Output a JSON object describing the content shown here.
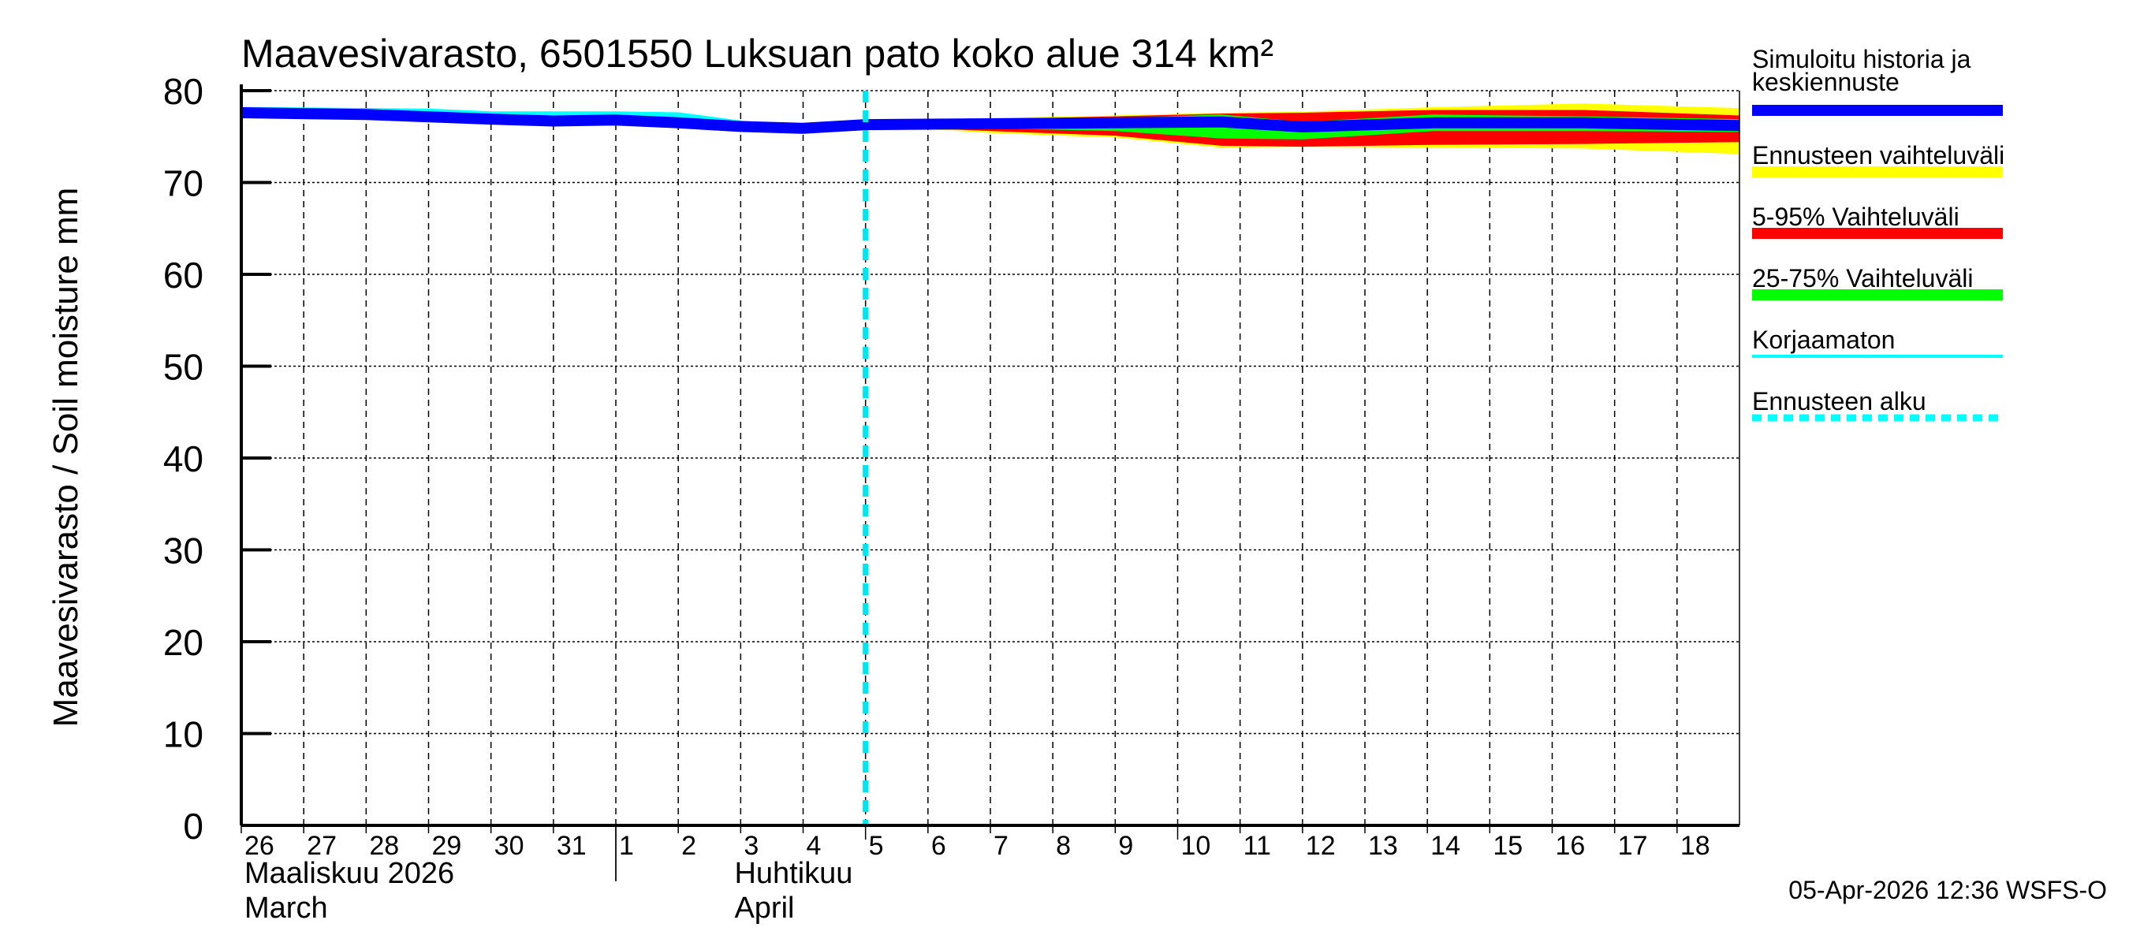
{
  "chart_data": {
    "type": "area",
    "title": "Maavesivarasto, 6501550 Luksuan pato koko alue 314 km²",
    "ylabel": "Maavesivarasto / Soil moisture   mm",
    "ylim": [
      0,
      80
    ],
    "yticks": [
      "0",
      "10",
      "20",
      "30",
      "40",
      "50",
      "60",
      "70",
      "80"
    ],
    "xlim": [
      "2026-03-26",
      "2026-04-19"
    ],
    "xtick_labels": [
      "26",
      "27",
      "28",
      "29",
      "30",
      "31",
      "1",
      "2",
      "3",
      "4",
      "5",
      "6",
      "7",
      "8",
      "9",
      "10",
      "11",
      "12",
      "13",
      "14",
      "15",
      "16",
      "17",
      "18"
    ],
    "month_labels": [
      {
        "fi": "Maaliskuu 2026",
        "en": "March"
      },
      {
        "fi": "Huhtikuu",
        "en": "April"
      }
    ],
    "grid": true,
    "legend_position": "right",
    "forecast_start": "2026-04-05",
    "colors": {
      "history": "#0000ff",
      "range_full": "#ffff00",
      "range_5_95": "#ff0000",
      "range_25_75": "#00ff00",
      "uncorrected": "#00ffff",
      "forecast_start": "#00e5ee"
    },
    "series": [
      {
        "name": "Simuloitu historia ja keskiennuste",
        "x": [
          "2026-03-26",
          "2026-03-28",
          "2026-03-30",
          "2026-03-31",
          "2026-04-01",
          "2026-04-02",
          "2026-04-03",
          "2026-04-04",
          "2026-04-05",
          "2026-04-07",
          "2026-04-09",
          "2026-04-10.7",
          "2026-04-12",
          "2026-04-14.1",
          "2026-04-16.5",
          "2026-04-19"
        ],
        "y": [
          77.6,
          77.4,
          76.9,
          76.7,
          76.8,
          76.5,
          76.1,
          75.9,
          76.3,
          76.4,
          76.5,
          76.6,
          76.05,
          76.5,
          76.5,
          76.2
        ]
      },
      {
        "name": "Korjaamaton",
        "x": [
          "2026-03-26",
          "2026-03-29",
          "2026-03-30",
          "2026-04-01",
          "2026-04-02",
          "2026-04-03",
          "2026-04-04",
          "2026-04-05"
        ],
        "y": [
          77.9,
          77.7,
          77.4,
          77.4,
          77.3,
          76.4,
          75.9,
          76.3
        ]
      }
    ],
    "bands": [
      {
        "name": "Ennusteen vaihteluväli",
        "x": [
          "2026-04-05",
          "2026-04-07",
          "2026-04-09",
          "2026-04-10.7",
          "2026-04-12",
          "2026-04-14.1",
          "2026-04-16.5",
          "2026-04-19"
        ],
        "upper": [
          76.4,
          77.0,
          77.3,
          77.6,
          77.7,
          78.2,
          78.6,
          78.1
        ],
        "lower": [
          76.2,
          75.4,
          74.9,
          73.8,
          73.9,
          73.8,
          73.7,
          73.1
        ]
      },
      {
        "name": "5-95% Vaihteluväli",
        "x": [
          "2026-04-05",
          "2026-04-07",
          "2026-04-09",
          "2026-04-10.7",
          "2026-04-12",
          "2026-04-14.1",
          "2026-04-16.5",
          "2026-04-19"
        ],
        "upper": [
          76.4,
          76.9,
          77.2,
          77.5,
          77.6,
          77.9,
          77.9,
          77.3
        ],
        "lower": [
          76.2,
          75.6,
          75.1,
          74.0,
          73.9,
          74.1,
          74.2,
          74.4
        ]
      },
      {
        "name": "25-75% Vaihteluväli",
        "x": [
          "2026-04-05",
          "2026-04-07",
          "2026-04-09",
          "2026-04-10.7",
          "2026-04-12",
          "2026-04-14.1",
          "2026-04-16.5",
          "2026-04-19"
        ],
        "upper": [
          76.4,
          76.7,
          77.0,
          77.4,
          76.6,
          77.4,
          77.2,
          76.9
        ],
        "lower": [
          76.2,
          75.9,
          75.6,
          74.8,
          74.7,
          75.6,
          75.6,
          75.5
        ]
      }
    ]
  },
  "legend": [
    {
      "label1": "Simuloitu historia ja",
      "label2": "keskiennuste"
    },
    {
      "label1": "Ennusteen vaihteluväli"
    },
    {
      "label1": "5-95% Vaihteluväli"
    },
    {
      "label1": "25-75% Vaihteluväli"
    },
    {
      "label1": "Korjaamaton"
    },
    {
      "label1": "Ennusteen alku"
    }
  ],
  "footer": "05-Apr-2026 12:36 WSFS-O"
}
